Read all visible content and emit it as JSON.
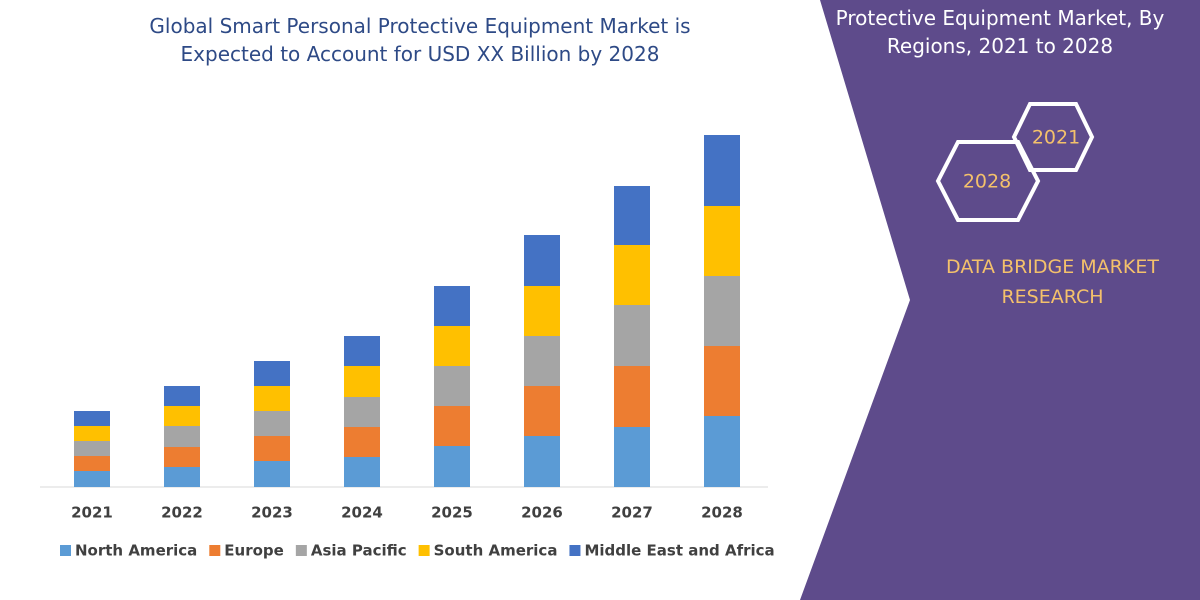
{
  "chart_data": {
    "type": "stacked_bar",
    "title": "Global Smart Personal Protective Equipment Market is Expected to Account for USD XX Billion by 2028",
    "categories": [
      "2021",
      "2022",
      "2023",
      "2024",
      "2025",
      "2026",
      "2027",
      "2028"
    ],
    "series": [
      {
        "name": "North America",
        "color": "#5b9bd5",
        "values": [
          16,
          20,
          26,
          30,
          41,
          51,
          60,
          71
        ]
      },
      {
        "name": "Europe",
        "color": "#ed7d31",
        "values": [
          15,
          20,
          25,
          30,
          40,
          50,
          61,
          70
        ]
      },
      {
        "name": "Asia Pacific",
        "color": "#a5a5a5",
        "values": [
          15,
          21,
          25,
          30,
          40,
          50,
          61,
          70
        ]
      },
      {
        "name": "South America",
        "color": "#ffc000",
        "values": [
          15,
          20,
          25,
          31,
          40,
          50,
          60,
          70
        ]
      },
      {
        "name": "Middle East and Africa",
        "color": "#4472c4",
        "values": [
          15,
          20,
          25,
          30,
          40,
          51,
          59,
          71
        ]
      }
    ]
  },
  "panel": {
    "title": "Protective Equipment Market, By Regions,  2021 to 2028",
    "badges": [
      "2021",
      "2028"
    ],
    "brand": "DATA BRIDGE MARKET RESEARCH"
  }
}
